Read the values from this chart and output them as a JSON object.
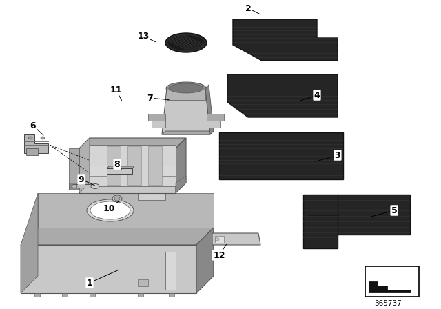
{
  "background_color": "#ffffff",
  "diagram_id": "365737",
  "figsize": [
    6.4,
    4.48
  ],
  "dpi": 100,
  "mat_dark": "#252525",
  "mat_stripe": "#333333",
  "mat_edge": "#111111",
  "plastic_light": "#c8c8c8",
  "plastic_mid": "#aaaaaa",
  "plastic_dark": "#888888",
  "plastic_edge": "#555555",
  "labels": [
    [
      "1",
      175,
      390,
      130,
      410
    ],
    [
      "2",
      380,
      22,
      360,
      12
    ],
    [
      "3",
      455,
      235,
      490,
      225
    ],
    [
      "4",
      430,
      148,
      460,
      138
    ],
    [
      "5",
      535,
      315,
      572,
      305
    ],
    [
      "6",
      65,
      198,
      48,
      182
    ],
    [
      "7",
      248,
      145,
      218,
      142
    ],
    [
      "8",
      178,
      248,
      170,
      238
    ],
    [
      "9",
      140,
      270,
      118,
      260
    ],
    [
      "10",
      175,
      290,
      158,
      302
    ],
    [
      "11",
      178,
      148,
      168,
      130
    ],
    [
      "12",
      330,
      352,
      318,
      370
    ],
    [
      "13",
      228,
      62,
      208,
      52
    ]
  ]
}
